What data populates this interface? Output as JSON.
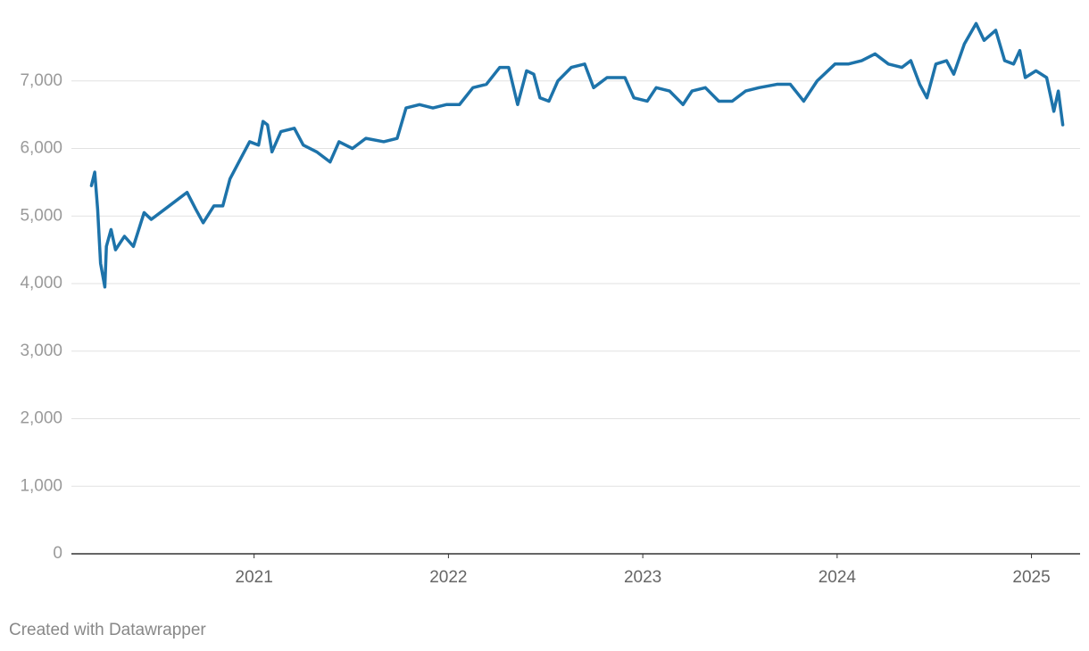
{
  "chart_data": {
    "type": "line",
    "color": "#1d73aa",
    "grid": true,
    "credit": "Created with Datawrapper",
    "x": [
      2020.163,
      2020.18,
      2020.195,
      2020.21,
      2020.232,
      2020.24,
      2020.264,
      2020.287,
      2020.333,
      2020.379,
      2020.434,
      2020.471,
      2020.54,
      2020.609,
      2020.655,
      2020.7,
      2020.738,
      2020.793,
      2020.839,
      2020.876,
      2020.931,
      2020.977,
      2021.023,
      2021.046,
      2021.069,
      2021.092,
      2021.138,
      2021.207,
      2021.253,
      2021.322,
      2021.391,
      2021.437,
      2021.506,
      2021.575,
      2021.667,
      2021.736,
      2021.782,
      2021.851,
      2021.92,
      2021.989,
      2022.057,
      2022.126,
      2022.195,
      2022.264,
      2022.31,
      2022.356,
      2022.402,
      2022.439,
      2022.471,
      2022.517,
      2022.563,
      2022.632,
      2022.701,
      2022.747,
      2022.816,
      2022.908,
      2022.954,
      2023.023,
      2023.069,
      2023.138,
      2023.207,
      2023.253,
      2023.322,
      2023.391,
      2023.46,
      2023.529,
      2023.598,
      2023.69,
      2023.759,
      2023.828,
      2023.897,
      2023.989,
      2024.057,
      2024.126,
      2024.195,
      2024.264,
      2024.333,
      2024.379,
      2024.425,
      2024.462,
      2024.508,
      2024.563,
      2024.6,
      2024.655,
      2024.715,
      2024.756,
      2024.816,
      2024.862,
      2024.908,
      2024.94,
      2024.968,
      2025.023,
      2025.078,
      2025.115,
      2025.138,
      2025.161
    ],
    "values": [
      5450,
      5650,
      5100,
      4300,
      3950,
      4550,
      4800,
      4500,
      4700,
      4550,
      5050,
      4950,
      5100,
      5250,
      5350,
      5100,
      4900,
      5150,
      5150,
      5550,
      5850,
      6100,
      6050,
      6400,
      6350,
      5950,
      6250,
      6300,
      6050,
      5950,
      5800,
      6100,
      6000,
      6150,
      6100,
      6150,
      6600,
      6650,
      6600,
      6650,
      6650,
      6900,
      6950,
      7200,
      7200,
      6650,
      7150,
      7100,
      6750,
      6700,
      7000,
      7200,
      7250,
      6900,
      7050,
      7050,
      6750,
      6700,
      6900,
      6850,
      6650,
      6850,
      6900,
      6700,
      6700,
      6850,
      6900,
      6950,
      6950,
      6700,
      7000,
      7250,
      7250,
      7300,
      7400,
      7250,
      7200,
      7300,
      6950,
      6750,
      7250,
      7300,
      7100,
      7550,
      7850,
      7600,
      7750,
      7300,
      7250,
      7450,
      7050,
      7150,
      7050,
      6550,
      6850,
      6350
    ],
    "xlim": [
      2020.06,
      2025.25
    ],
    "xticks": [
      2021,
      2022,
      2023,
      2024,
      2025
    ],
    "ylim": [
      0,
      8000
    ],
    "yticks": [
      0,
      {
        "value": 1000,
        "label": "1,000"
      },
      {
        "value": 2000,
        "label": "2,000"
      },
      {
        "value": 3000,
        "label": "3,000"
      },
      {
        "value": 4000,
        "label": "4,000"
      },
      {
        "value": 5000,
        "label": "5,000"
      },
      {
        "value": 6000,
        "label": "6,000"
      },
      {
        "value": 7000,
        "label": "7,000"
      }
    ]
  }
}
